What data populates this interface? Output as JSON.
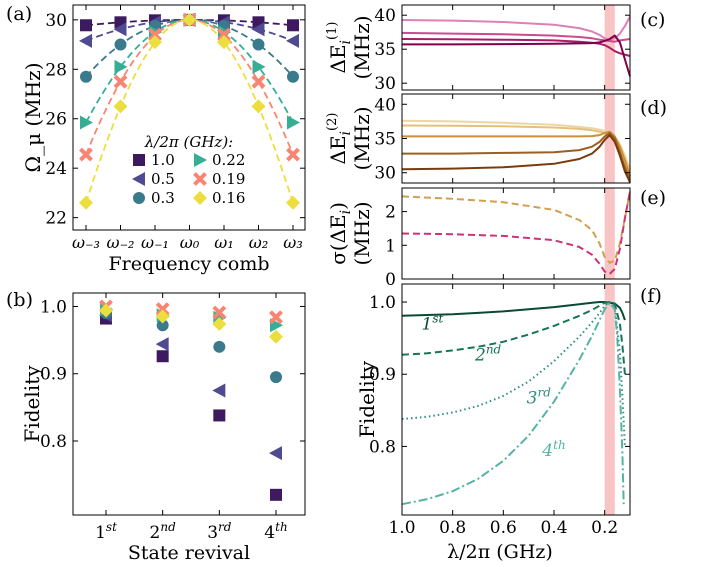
{
  "panel_labels": {
    "a": "(a)",
    "b": "(b)",
    "c": "(c)",
    "d": "(d)",
    "e": "(e)",
    "f": "(f)"
  },
  "chart_data": [
    {
      "id": "a",
      "type": "scatter",
      "xlabel": "Frequency comb",
      "ylabel": "Ω_μ (MHz)",
      "ylim": [
        21.5,
        30.6
      ],
      "x": [
        -3,
        -2,
        -1,
        0,
        1,
        2,
        3
      ],
      "xticklabels": [
        "ω₋₃",
        "ω₋₂",
        "ω₋₁",
        "ω₀",
        "ω₁",
        "ω₂",
        "ω₃"
      ],
      "yticks": [
        22,
        24,
        26,
        28,
        30
      ],
      "legend_title": "λ/2π (GHz):",
      "legend_placement": "lower-center",
      "series": [
        {
          "name": "1.0",
          "color": "#3d1a5f",
          "marker": "square",
          "values": [
            29.78,
            29.9,
            29.98,
            30.0,
            29.98,
            29.9,
            29.78
          ]
        },
        {
          "name": "0.5",
          "color": "#4f4a91",
          "marker": "triangle-left",
          "values": [
            29.15,
            29.62,
            29.9,
            30.0,
            29.9,
            29.62,
            29.15
          ]
        },
        {
          "name": "0.3",
          "color": "#3a7a8c",
          "marker": "circle",
          "values": [
            27.7,
            29.0,
            29.75,
            30.0,
            29.75,
            29.0,
            27.7
          ]
        },
        {
          "name": "0.22",
          "color": "#36ae96",
          "marker": "triangle-right",
          "values": [
            25.85,
            28.1,
            29.5,
            30.0,
            29.5,
            28.1,
            25.85
          ]
        },
        {
          "name": "0.19",
          "color": "#f88572",
          "marker": "cross",
          "values": [
            24.55,
            27.5,
            29.4,
            30.0,
            29.4,
            27.5,
            24.55
          ]
        },
        {
          "name": "0.16",
          "color": "#ecde3e",
          "marker": "diamond",
          "values": [
            22.6,
            26.5,
            29.1,
            30.0,
            29.1,
            26.5,
            22.6
          ]
        }
      ]
    },
    {
      "id": "b",
      "type": "scatter",
      "xlabel": "State revival",
      "ylabel": "Fidelity",
      "ylim": [
        0.69,
        1.02
      ],
      "yticks": [
        0.8,
        0.9,
        1.0
      ],
      "yticklabels": [
        "0.8",
        "0.9",
        "1.0"
      ],
      "categories": [
        "1st",
        "2nd",
        "3rd",
        "4th"
      ],
      "category_labels": [
        [
          "1",
          "st"
        ],
        [
          "2",
          "nd"
        ],
        [
          "3",
          "rd"
        ],
        [
          "4",
          "th"
        ]
      ],
      "series": [
        {
          "color": "#3d1a5f",
          "marker": "square",
          "values": [
            0.982,
            0.926,
            0.838,
            0.72
          ]
        },
        {
          "color": "#4f4a91",
          "marker": "triangle-left",
          "values": [
            0.987,
            0.944,
            0.875,
            0.782
          ]
        },
        {
          "color": "#3a7a8c",
          "marker": "circle",
          "values": [
            0.99,
            0.972,
            0.94,
            0.895
          ]
        },
        {
          "color": "#36ae96",
          "marker": "triangle-right",
          "values": [
            0.996,
            0.987,
            0.983,
            0.972
          ]
        },
        {
          "color": "#f88572",
          "marker": "cross",
          "values": [
            1.0,
            0.996,
            0.991,
            0.984
          ]
        },
        {
          "color": "#ecde3e",
          "marker": "diamond",
          "values": [
            0.994,
            0.985,
            0.974,
            0.955
          ]
        }
      ]
    },
    {
      "id": "c",
      "type": "line",
      "ylabel_main": "ΔE",
      "ylabel_sub": "i",
      "ylabel_sup": "(1)",
      "ylabel_unit": "(MHz)",
      "xlim": [
        1.0,
        0.1
      ],
      "ylim": [
        29.0,
        41.5
      ],
      "yticks": [
        30,
        35,
        40
      ],
      "highlight_band": [
        0.2,
        0.16
      ],
      "band_color": "#f9c4c4",
      "series": [
        {
          "color": "#de80b5",
          "x": [
            1.0,
            0.8,
            0.6,
            0.4,
            0.3,
            0.25,
            0.22,
            0.2,
            0.18,
            0.16,
            0.14,
            0.12,
            0.1
          ],
          "y": [
            39.3,
            39.2,
            39.0,
            38.6,
            38.1,
            37.6,
            37.1,
            36.6,
            36.4,
            36.6,
            37.3,
            38.4,
            39.8
          ]
        },
        {
          "color": "#cc4a8f",
          "x": [
            1.0,
            0.8,
            0.6,
            0.4,
            0.3,
            0.25,
            0.22,
            0.2,
            0.18,
            0.16,
            0.14,
            0.12,
            0.1
          ],
          "y": [
            37.4,
            37.3,
            37.2,
            37.0,
            36.8,
            36.6,
            36.4,
            36.3,
            36.2,
            36.1,
            36.3,
            36.4,
            36.5
          ]
        },
        {
          "color": "#a81c6a",
          "x": [
            1.0,
            0.8,
            0.6,
            0.4,
            0.3,
            0.25,
            0.22,
            0.2,
            0.18,
            0.16,
            0.14,
            0.12,
            0.1
          ],
          "y": [
            36.5,
            36.45,
            36.4,
            36.3,
            36.1,
            35.95,
            35.8,
            35.6,
            35.2,
            34.7,
            34.4,
            34.2,
            34.0
          ]
        },
        {
          "color": "#82004a",
          "x": [
            1.0,
            0.8,
            0.6,
            0.4,
            0.3,
            0.25,
            0.22,
            0.2,
            0.18,
            0.16,
            0.14,
            0.12,
            0.1
          ],
          "y": [
            35.7,
            35.7,
            35.75,
            35.8,
            35.85,
            35.9,
            36.0,
            36.2,
            36.5,
            37.0,
            36.0,
            33.5,
            31.0
          ]
        }
      ]
    },
    {
      "id": "d",
      "type": "line",
      "ylabel_main": "ΔE",
      "ylabel_sub": "i",
      "ylabel_sup": "(2)",
      "ylabel_unit": "(MHz)",
      "xlim": [
        1.0,
        0.1
      ],
      "ylim": [
        28.5,
        41.5
      ],
      "yticks": [
        30,
        35,
        40
      ],
      "highlight_band": [
        0.2,
        0.16
      ],
      "band_color": "#f9c4c4",
      "series": [
        {
          "color": "#ecd6a3",
          "x": [
            1.0,
            0.8,
            0.6,
            0.4,
            0.3,
            0.25,
            0.22,
            0.2,
            0.18,
            0.16,
            0.14,
            0.12,
            0.1
          ],
          "y": [
            37.6,
            37.5,
            37.3,
            37.0,
            36.7,
            36.5,
            36.3,
            36.1,
            35.8,
            35.2,
            34.2,
            32.5,
            30.5
          ]
        },
        {
          "color": "#e5c07a",
          "x": [
            1.0,
            0.8,
            0.6,
            0.4,
            0.3,
            0.25,
            0.22,
            0.2,
            0.18,
            0.16,
            0.14,
            0.12,
            0.1
          ],
          "y": [
            36.9,
            36.85,
            36.8,
            36.6,
            36.4,
            36.2,
            36.0,
            35.8,
            35.4,
            34.9,
            33.8,
            32.0,
            30.0
          ]
        },
        {
          "color": "#c8913a",
          "x": [
            1.0,
            0.8,
            0.6,
            0.4,
            0.3,
            0.25,
            0.22,
            0.2,
            0.18,
            0.16,
            0.14,
            0.12,
            0.1
          ],
          "y": [
            35.3,
            35.3,
            35.3,
            35.3,
            35.3,
            35.35,
            35.5,
            35.8,
            36.0,
            35.3,
            33.8,
            31.8,
            29.5
          ]
        },
        {
          "color": "#9c5f20",
          "x": [
            1.0,
            0.8,
            0.6,
            0.4,
            0.3,
            0.25,
            0.22,
            0.2,
            0.18,
            0.16,
            0.14,
            0.12,
            0.1
          ],
          "y": [
            32.8,
            32.8,
            32.9,
            33.0,
            33.3,
            33.8,
            34.5,
            35.3,
            35.8,
            35.0,
            33.0,
            30.8,
            29.0
          ]
        },
        {
          "color": "#7a3c0c",
          "x": [
            1.0,
            0.8,
            0.6,
            0.4,
            0.3,
            0.25,
            0.22,
            0.2,
            0.18,
            0.16,
            0.14,
            0.12,
            0.1
          ],
          "y": [
            30.5,
            30.6,
            30.8,
            31.3,
            32.0,
            32.8,
            33.8,
            34.8,
            35.5,
            34.5,
            32.5,
            30.2,
            28.6
          ]
        }
      ]
    },
    {
      "id": "e",
      "type": "line",
      "ylabel_main": "σ(ΔE",
      "ylabel_sub": "i",
      "ylabel_close": ")",
      "ylabel_unit": "(MHz)",
      "xlim": [
        1.0,
        0.1
      ],
      "ylim": [
        0.0,
        2.7
      ],
      "yticks": [
        0,
        1,
        2
      ],
      "highlight_band": [
        0.2,
        0.16
      ],
      "band_color": "#f9c4c4",
      "series": [
        {
          "color": "#d0a050",
          "dash": "dashed",
          "x": [
            1.0,
            0.8,
            0.6,
            0.4,
            0.3,
            0.25,
            0.22,
            0.2,
            0.18,
            0.16,
            0.14,
            0.12,
            0.1
          ],
          "y": [
            2.45,
            2.38,
            2.28,
            2.05,
            1.75,
            1.45,
            1.05,
            0.65,
            0.48,
            0.55,
            1.05,
            1.8,
            2.6
          ]
        },
        {
          "color": "#cc3378",
          "dash": "dashed",
          "x": [
            1.0,
            0.8,
            0.6,
            0.4,
            0.3,
            0.25,
            0.22,
            0.2,
            0.18,
            0.16,
            0.14,
            0.12,
            0.1
          ],
          "y": [
            1.35,
            1.33,
            1.28,
            1.15,
            0.95,
            0.72,
            0.45,
            0.22,
            0.15,
            0.3,
            0.9,
            1.8,
            2.6
          ]
        }
      ]
    },
    {
      "id": "f",
      "type": "line",
      "xlabel": "λ/2π (GHz)",
      "ylabel": "Fidelity",
      "xlim": [
        1.0,
        0.1
      ],
      "ylim": [
        0.705,
        1.025
      ],
      "xticks": [
        1.0,
        0.8,
        0.6,
        0.4,
        0.2
      ],
      "xticklabels": [
        "1.0",
        "0.8",
        "0.6",
        "0.4",
        "0.2"
      ],
      "yticks": [
        0.8,
        0.9,
        1.0
      ],
      "yticklabels": [
        "0.8",
        "0.9",
        "1.0"
      ],
      "highlight_band": [
        0.2,
        0.16
      ],
      "band_color": "#f9c4c4",
      "series": [
        {
          "name": "1st",
          "color": "#0a4a35",
          "dash": "solid",
          "label_base": "1",
          "label_sup": "st",
          "x": [
            1.0,
            0.9,
            0.8,
            0.7,
            0.6,
            0.5,
            0.4,
            0.3,
            0.25,
            0.22,
            0.2,
            0.18,
            0.16,
            0.14,
            0.13,
            0.12
          ],
          "y": [
            0.981,
            0.982,
            0.983,
            0.985,
            0.987,
            0.99,
            0.993,
            0.997,
            0.999,
            1.0,
            1.0,
            0.999,
            0.998,
            0.992,
            0.985,
            0.975
          ]
        },
        {
          "name": "2nd",
          "color": "#167558",
          "dash": "dashed",
          "label_base": "2",
          "label_sup": "nd",
          "x": [
            1.0,
            0.9,
            0.8,
            0.7,
            0.6,
            0.5,
            0.4,
            0.3,
            0.25,
            0.22,
            0.2,
            0.18,
            0.16,
            0.14,
            0.13,
            0.12
          ],
          "y": [
            0.927,
            0.929,
            0.933,
            0.938,
            0.945,
            0.955,
            0.967,
            0.981,
            0.989,
            0.995,
            0.999,
            1.0,
            0.997,
            0.97,
            0.94,
            0.9
          ]
        },
        {
          "name": "3rd",
          "color": "#2a8f7f",
          "dash": "dotted",
          "label_base": "3",
          "label_sup": "rd",
          "x": [
            1.0,
            0.9,
            0.8,
            0.7,
            0.6,
            0.5,
            0.4,
            0.3,
            0.25,
            0.22,
            0.2,
            0.18,
            0.16,
            0.14,
            0.13,
            0.12
          ],
          "y": [
            0.838,
            0.841,
            0.847,
            0.856,
            0.87,
            0.89,
            0.918,
            0.952,
            0.972,
            0.985,
            0.995,
            1.0,
            0.993,
            0.93,
            0.87,
            0.8
          ]
        },
        {
          "name": "4th",
          "color": "#55b3a6",
          "dash": "dashdot",
          "label_base": "4",
          "label_sup": "th",
          "x": [
            1.0,
            0.9,
            0.8,
            0.7,
            0.6,
            0.5,
            0.4,
            0.3,
            0.25,
            0.22,
            0.2,
            0.18,
            0.16,
            0.15,
            0.14,
            0.13,
            0.125
          ],
          "y": [
            0.72,
            0.727,
            0.738,
            0.755,
            0.78,
            0.815,
            0.862,
            0.92,
            0.953,
            0.975,
            0.99,
            0.999,
            0.99,
            0.95,
            0.88,
            0.79,
            0.72
          ]
        }
      ]
    }
  ]
}
